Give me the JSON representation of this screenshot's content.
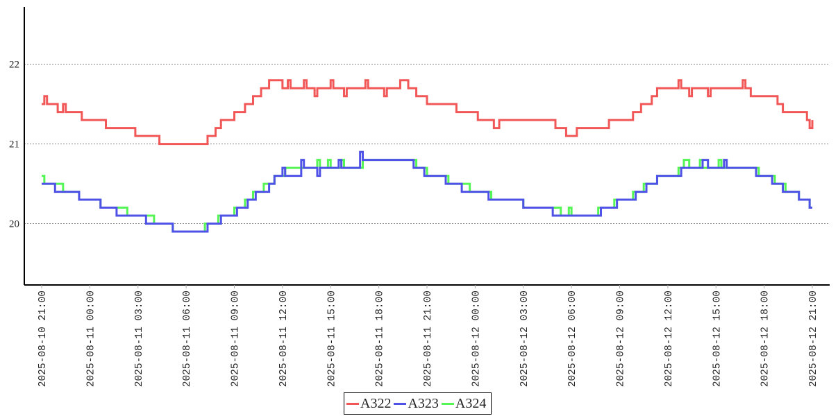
{
  "chart_data": {
    "type": "line",
    "step": true,
    "title": "",
    "xlabel": "",
    "ylabel": "",
    "xlim": [
      "2025-08-10 21:00",
      "2025-08-12 21:00"
    ],
    "ylim": [
      19.23,
      22.72
    ],
    "grid": {
      "y": true,
      "x": false,
      "style": "dotted"
    },
    "legend_position": "bottom-center",
    "y_ticks": [
      "20",
      "21",
      "22"
    ],
    "x_ticks": [
      "2025-08-10 21:00",
      "2025-08-11 00:00",
      "2025-08-11 03:00",
      "2025-08-11 06:00",
      "2025-08-11 09:00",
      "2025-08-11 12:00",
      "2025-08-11 15:00",
      "2025-08-11 18:00",
      "2025-08-11 21:00",
      "2025-08-12 00:00",
      "2025-08-12 03:00",
      "2025-08-12 06:00",
      "2025-08-12 09:00",
      "2025-08-12 12:00",
      "2025-08-12 15:00",
      "2025-08-12 18:00",
      "2025-08-12 21:00"
    ],
    "series": [
      {
        "name": "A322",
        "color": "#f25757",
        "points": [
          [
            "2025-08-10 21:00",
            21.5
          ],
          [
            "2025-08-10 21:10",
            21.6
          ],
          [
            "2025-08-10 21:20",
            21.5
          ],
          [
            "2025-08-10 22:00",
            21.4
          ],
          [
            "2025-08-10 22:20",
            21.5
          ],
          [
            "2025-08-10 22:30",
            21.4
          ],
          [
            "2025-08-10 23:30",
            21.3
          ],
          [
            "2025-08-11 01:00",
            21.2
          ],
          [
            "2025-08-11 02:50",
            21.1
          ],
          [
            "2025-08-11 04:20",
            21.0
          ],
          [
            "2025-08-11 07:20",
            21.1
          ],
          [
            "2025-08-11 07:50",
            21.2
          ],
          [
            "2025-08-11 08:10",
            21.3
          ],
          [
            "2025-08-11 09:00",
            21.4
          ],
          [
            "2025-08-11 09:40",
            21.5
          ],
          [
            "2025-08-11 10:10",
            21.6
          ],
          [
            "2025-08-11 10:40",
            21.7
          ],
          [
            "2025-08-11 11:10",
            21.8
          ],
          [
            "2025-08-11 12:00",
            21.7
          ],
          [
            "2025-08-11 12:20",
            21.8
          ],
          [
            "2025-08-11 12:30",
            21.7
          ],
          [
            "2025-08-11 13:20",
            21.8
          ],
          [
            "2025-08-11 13:30",
            21.7
          ],
          [
            "2025-08-11 14:00",
            21.6
          ],
          [
            "2025-08-11 14:10",
            21.7
          ],
          [
            "2025-08-11 15:00",
            21.8
          ],
          [
            "2025-08-11 15:10",
            21.7
          ],
          [
            "2025-08-11 15:50",
            21.6
          ],
          [
            "2025-08-11 16:00",
            21.7
          ],
          [
            "2025-08-11 17:10",
            21.8
          ],
          [
            "2025-08-11 17:20",
            21.7
          ],
          [
            "2025-08-11 18:20",
            21.6
          ],
          [
            "2025-08-11 18:30",
            21.7
          ],
          [
            "2025-08-11 19:20",
            21.8
          ],
          [
            "2025-08-11 19:50",
            21.7
          ],
          [
            "2025-08-11 20:20",
            21.6
          ],
          [
            "2025-08-11 21:00",
            21.5
          ],
          [
            "2025-08-11 22:50",
            21.4
          ],
          [
            "2025-08-12 00:10",
            21.3
          ],
          [
            "2025-08-12 01:10",
            21.2
          ],
          [
            "2025-08-12 01:30",
            21.3
          ],
          [
            "2025-08-12 05:00",
            21.2
          ],
          [
            "2025-08-12 05:40",
            21.1
          ],
          [
            "2025-08-12 06:20",
            21.2
          ],
          [
            "2025-08-12 08:20",
            21.3
          ],
          [
            "2025-08-12 09:50",
            21.4
          ],
          [
            "2025-08-12 10:20",
            21.5
          ],
          [
            "2025-08-12 11:00",
            21.6
          ],
          [
            "2025-08-12 11:20",
            21.7
          ],
          [
            "2025-08-12 12:40",
            21.8
          ],
          [
            "2025-08-12 12:50",
            21.7
          ],
          [
            "2025-08-12 13:20",
            21.6
          ],
          [
            "2025-08-12 13:30",
            21.7
          ],
          [
            "2025-08-12 14:30",
            21.6
          ],
          [
            "2025-08-12 14:40",
            21.7
          ],
          [
            "2025-08-12 16:40",
            21.8
          ],
          [
            "2025-08-12 16:50",
            21.7
          ],
          [
            "2025-08-12 17:10",
            21.6
          ],
          [
            "2025-08-12 18:50",
            21.5
          ],
          [
            "2025-08-12 19:10",
            21.4
          ],
          [
            "2025-08-12 20:40",
            21.3
          ],
          [
            "2025-08-12 20:50",
            21.2
          ],
          [
            "2025-08-12 21:00",
            21.3
          ]
        ]
      },
      {
        "name": "A323",
        "color": "#4f52e6",
        "points": [
          [
            "2025-08-10 21:00",
            20.5
          ],
          [
            "2025-08-10 21:50",
            20.4
          ],
          [
            "2025-08-10 23:20",
            20.3
          ],
          [
            "2025-08-11 00:40",
            20.2
          ],
          [
            "2025-08-11 01:40",
            20.1
          ],
          [
            "2025-08-11 03:30",
            20.0
          ],
          [
            "2025-08-11 05:10",
            19.9
          ],
          [
            "2025-08-11 07:20",
            20.0
          ],
          [
            "2025-08-11 08:10",
            20.1
          ],
          [
            "2025-08-11 09:10",
            20.2
          ],
          [
            "2025-08-11 09:50",
            20.3
          ],
          [
            "2025-08-11 10:20",
            20.4
          ],
          [
            "2025-08-11 11:10",
            20.5
          ],
          [
            "2025-08-11 11:30",
            20.6
          ],
          [
            "2025-08-11 12:00",
            20.7
          ],
          [
            "2025-08-11 12:10",
            20.6
          ],
          [
            "2025-08-11 13:10",
            20.8
          ],
          [
            "2025-08-11 13:20",
            20.7
          ],
          [
            "2025-08-11 14:10",
            20.6
          ],
          [
            "2025-08-11 14:20",
            20.7
          ],
          [
            "2025-08-11 15:30",
            20.8
          ],
          [
            "2025-08-11 15:40",
            20.7
          ],
          [
            "2025-08-11 16:50",
            20.9
          ],
          [
            "2025-08-11 17:00",
            20.8
          ],
          [
            "2025-08-11 20:10",
            20.7
          ],
          [
            "2025-08-11 20:50",
            20.6
          ],
          [
            "2025-08-11 22:10",
            20.5
          ],
          [
            "2025-08-11 23:10",
            20.4
          ],
          [
            "2025-08-12 00:50",
            20.3
          ],
          [
            "2025-08-12 03:00",
            20.2
          ],
          [
            "2025-08-12 04:50",
            20.1
          ],
          [
            "2025-08-12 07:50",
            20.2
          ],
          [
            "2025-08-12 08:50",
            20.3
          ],
          [
            "2025-08-12 10:00",
            20.4
          ],
          [
            "2025-08-12 10:40",
            20.5
          ],
          [
            "2025-08-12 11:20",
            20.6
          ],
          [
            "2025-08-12 12:50",
            20.7
          ],
          [
            "2025-08-12 14:10",
            20.8
          ],
          [
            "2025-08-12 14:30",
            20.7
          ],
          [
            "2025-08-12 15:30",
            20.8
          ],
          [
            "2025-08-12 15:40",
            20.7
          ],
          [
            "2025-08-12 17:30",
            20.6
          ],
          [
            "2025-08-12 18:30",
            20.5
          ],
          [
            "2025-08-12 19:10",
            20.4
          ],
          [
            "2025-08-12 20:10",
            20.3
          ],
          [
            "2025-08-12 20:50",
            20.2
          ],
          [
            "2025-08-12 21:00",
            20.2
          ]
        ]
      },
      {
        "name": "A324",
        "color": "#55f555",
        "points": [
          [
            "2025-08-10 21:00",
            20.6
          ],
          [
            "2025-08-10 21:10",
            20.5
          ],
          [
            "2025-08-10 22:20",
            20.4
          ],
          [
            "2025-08-10 23:20",
            20.3
          ],
          [
            "2025-08-11 00:40",
            20.2
          ],
          [
            "2025-08-11 02:20",
            20.1
          ],
          [
            "2025-08-11 04:00",
            20.0
          ],
          [
            "2025-08-11 05:10",
            19.9
          ],
          [
            "2025-08-11 07:10",
            20.0
          ],
          [
            "2025-08-11 08:00",
            20.1
          ],
          [
            "2025-08-11 09:00",
            20.2
          ],
          [
            "2025-08-11 09:40",
            20.3
          ],
          [
            "2025-08-11 10:10",
            20.4
          ],
          [
            "2025-08-11 10:50",
            20.5
          ],
          [
            "2025-08-11 11:30",
            20.6
          ],
          [
            "2025-08-11 12:10",
            20.7
          ],
          [
            "2025-08-11 14:10",
            20.8
          ],
          [
            "2025-08-11 14:20",
            20.7
          ],
          [
            "2025-08-11 14:50",
            20.8
          ],
          [
            "2025-08-11 15:00",
            20.7
          ],
          [
            "2025-08-11 15:40",
            20.8
          ],
          [
            "2025-08-11 15:50",
            20.7
          ],
          [
            "2025-08-11 17:00",
            20.8
          ],
          [
            "2025-08-11 20:20",
            20.7
          ],
          [
            "2025-08-11 21:00",
            20.6
          ],
          [
            "2025-08-11 22:20",
            20.5
          ],
          [
            "2025-08-11 23:40",
            20.4
          ],
          [
            "2025-08-12 01:00",
            20.3
          ],
          [
            "2025-08-12 03:00",
            20.2
          ],
          [
            "2025-08-12 05:20",
            20.1
          ],
          [
            "2025-08-12 05:50",
            20.2
          ],
          [
            "2025-08-12 06:00",
            20.1
          ],
          [
            "2025-08-12 07:40",
            20.2
          ],
          [
            "2025-08-12 08:40",
            20.3
          ],
          [
            "2025-08-12 09:50",
            20.4
          ],
          [
            "2025-08-12 10:30",
            20.5
          ],
          [
            "2025-08-12 11:20",
            20.6
          ],
          [
            "2025-08-12 12:40",
            20.7
          ],
          [
            "2025-08-12 13:00",
            20.8
          ],
          [
            "2025-08-12 13:20",
            20.7
          ],
          [
            "2025-08-12 14:00",
            20.8
          ],
          [
            "2025-08-12 14:10",
            20.7
          ],
          [
            "2025-08-12 15:10",
            20.8
          ],
          [
            "2025-08-12 15:20",
            20.7
          ],
          [
            "2025-08-12 17:40",
            20.6
          ],
          [
            "2025-08-12 18:40",
            20.5
          ],
          [
            "2025-08-12 19:20",
            20.4
          ],
          [
            "2025-08-12 20:10",
            20.3
          ],
          [
            "2025-08-12 20:50",
            20.2
          ],
          [
            "2025-08-12 21:00",
            20.2
          ]
        ]
      }
    ]
  }
}
